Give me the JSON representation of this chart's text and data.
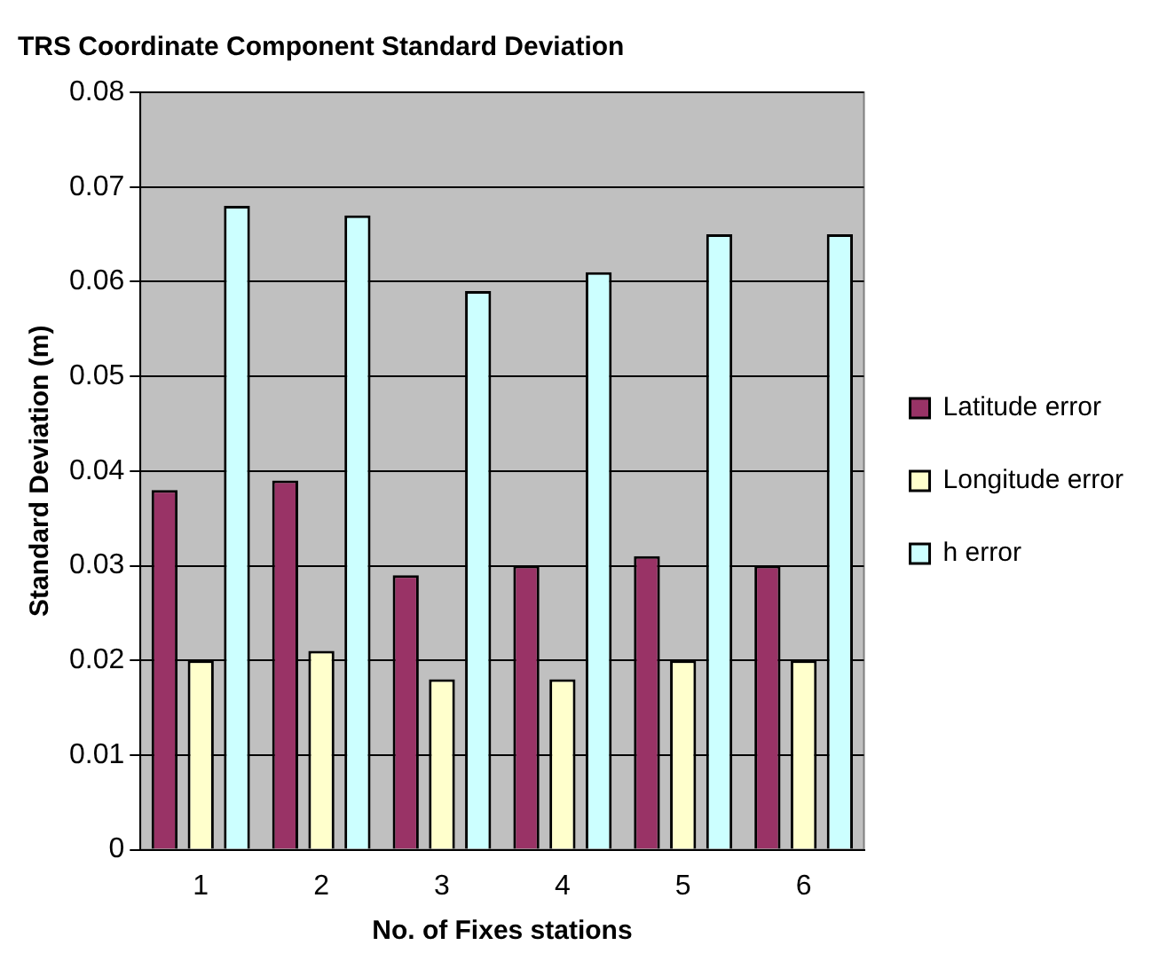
{
  "chart_data": {
    "type": "bar",
    "title": "TRS Coordinate Component Standard Deviation",
    "xlabel": "No. of Fixes stations",
    "ylabel": "Standard Deviation (m)",
    "categories": [
      "1",
      "2",
      "3",
      "4",
      "5",
      "6"
    ],
    "series": [
      {
        "name": "Latitude error",
        "color": "#993366",
        "values": [
          0.038,
          0.039,
          0.029,
          0.03,
          0.031,
          0.03
        ]
      },
      {
        "name": "Longitude error",
        "color": "#ffffcc",
        "values": [
          0.02,
          0.021,
          0.018,
          0.018,
          0.02,
          0.02
        ]
      },
      {
        "name": "h error",
        "color": "#ccffff",
        "values": [
          0.068,
          0.067,
          0.059,
          0.061,
          0.065,
          0.065
        ]
      }
    ],
    "ylim": [
      0,
      0.08
    ],
    "yticks": [
      0,
      0.01,
      0.02,
      0.03,
      0.04,
      0.05,
      0.06,
      0.07,
      0.08
    ],
    "grid": "y",
    "legend": "right"
  }
}
